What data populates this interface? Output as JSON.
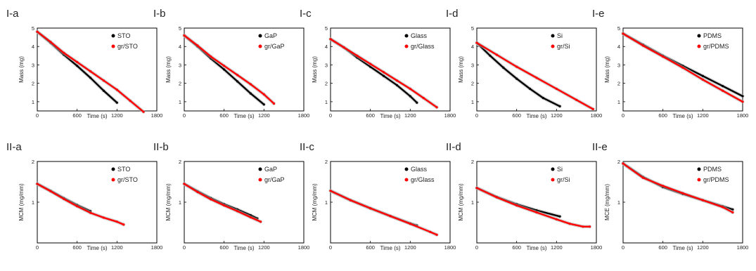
{
  "chart_data": [
    {
      "panel": "I-a",
      "type": "line",
      "xlabel": "Time (s)",
      "ylabel": "Mass (mg)",
      "xlim": [
        0,
        1800
      ],
      "ylim": [
        0.5,
        5
      ],
      "xticks": [
        0,
        600,
        1200,
        1800
      ],
      "yticks": [
        1,
        2,
        3,
        4,
        5
      ],
      "legend_position": "top-right",
      "series": [
        {
          "name": "STO",
          "color": "#000000",
          "x": [
            0,
            200,
            400,
            600,
            800,
            1000,
            1200
          ],
          "y": [
            4.8,
            4.2,
            3.55,
            2.95,
            2.3,
            1.6,
            0.95
          ]
        },
        {
          "name": "gr/STO",
          "color": "#ff0000",
          "x": [
            0,
            200,
            400,
            600,
            800,
            1000,
            1200,
            1400,
            1600
          ],
          "y": [
            4.8,
            4.25,
            3.65,
            3.15,
            2.65,
            2.15,
            1.65,
            1.05,
            0.45
          ]
        }
      ]
    },
    {
      "panel": "I-b",
      "type": "line",
      "xlabel": "Time (s)",
      "ylabel": "Mass (mg)",
      "xlim": [
        0,
        1800
      ],
      "ylim": [
        0.5,
        5
      ],
      "xticks": [
        0,
        600,
        1200,
        1800
      ],
      "yticks": [
        1,
        2,
        3,
        4,
        5
      ],
      "legend_position": "top-right",
      "series": [
        {
          "name": "GaP",
          "color": "#000000",
          "x": [
            0,
            200,
            400,
            600,
            800,
            1000,
            1200
          ],
          "y": [
            4.6,
            4.0,
            3.35,
            2.75,
            2.1,
            1.45,
            0.85
          ]
        },
        {
          "name": "gr/GaP",
          "color": "#ff0000",
          "x": [
            0,
            200,
            400,
            600,
            800,
            1000,
            1200,
            1350
          ],
          "y": [
            4.6,
            4.05,
            3.45,
            2.95,
            2.45,
            1.95,
            1.4,
            0.9
          ]
        }
      ]
    },
    {
      "panel": "I-c",
      "type": "line",
      "xlabel": "Time (s)",
      "ylabel": "Mass (mg)",
      "xlim": [
        0,
        1800
      ],
      "ylim": [
        0.5,
        5
      ],
      "xticks": [
        0,
        600,
        1200,
        1800
      ],
      "yticks": [
        1,
        2,
        3,
        4,
        5
      ],
      "legend_position": "top-right",
      "series": [
        {
          "name": "Glass",
          "color": "#000000",
          "x": [
            0,
            200,
            400,
            600,
            800,
            1000,
            1200,
            1300
          ],
          "y": [
            4.4,
            3.95,
            3.4,
            2.9,
            2.4,
            1.9,
            1.3,
            0.95
          ]
        },
        {
          "name": "gr/Glass",
          "color": "#ff0000",
          "x": [
            0,
            200,
            400,
            600,
            800,
            1000,
            1200,
            1400,
            1600
          ],
          "y": [
            4.4,
            3.95,
            3.5,
            3.05,
            2.6,
            2.15,
            1.7,
            1.2,
            0.7
          ]
        }
      ]
    },
    {
      "panel": "I-d",
      "type": "line",
      "xlabel": "Time (s)",
      "ylabel": "Mass (mg)",
      "xlim": [
        0,
        1800
      ],
      "ylim": [
        0.5,
        5
      ],
      "xticks": [
        0,
        600,
        1200,
        1800
      ],
      "yticks": [
        1,
        2,
        3,
        4,
        5
      ],
      "legend_position": "top-right",
      "series": [
        {
          "name": "Si",
          "color": "#000000",
          "x": [
            0,
            200,
            400,
            600,
            800,
            1000,
            1250
          ],
          "y": [
            4.2,
            3.5,
            2.85,
            2.25,
            1.7,
            1.2,
            0.75
          ]
        },
        {
          "name": "gr/Si",
          "color": "#ff0000",
          "x": [
            0,
            300,
            600,
            900,
            1200,
            1500,
            1750
          ],
          "y": [
            4.2,
            3.55,
            2.9,
            2.3,
            1.7,
            1.1,
            0.6
          ]
        }
      ]
    },
    {
      "panel": "I-e",
      "type": "line",
      "xlabel": "Time (s)",
      "ylabel": "Mass (mg)",
      "xlim": [
        0,
        1800
      ],
      "ylim": [
        0.5,
        5
      ],
      "xticks": [
        0,
        600,
        1200,
        1800
      ],
      "yticks": [
        1,
        2,
        3,
        4,
        5
      ],
      "legend_position": "top-right",
      "series": [
        {
          "name": "PDMS",
          "color": "#000000",
          "x": [
            0,
            300,
            600,
            900,
            1200,
            1500,
            1800
          ],
          "y": [
            4.7,
            4.1,
            3.5,
            2.95,
            2.4,
            1.85,
            1.3
          ]
        },
        {
          "name": "gr/PDMS",
          "color": "#ff0000",
          "x": [
            0,
            300,
            600,
            900,
            1200,
            1500,
            1800
          ],
          "y": [
            4.7,
            4.05,
            3.45,
            2.85,
            2.2,
            1.6,
            1.0
          ]
        }
      ]
    },
    {
      "panel": "II-a",
      "type": "line",
      "xlabel": "Time (s)",
      "ylabel": "MCM (mg/mm)",
      "xlim": [
        0,
        1800
      ],
      "ylim": [
        0,
        2
      ],
      "xticks": [
        0,
        600,
        1200,
        1800
      ],
      "yticks": [
        1,
        2
      ],
      "legend_position": "top-right",
      "series": [
        {
          "name": "STO",
          "color": "#000000",
          "x": [
            0,
            200,
            400,
            600,
            800
          ],
          "y": [
            1.45,
            1.28,
            1.1,
            0.93,
            0.78
          ]
        },
        {
          "name": "gr/STO",
          "color": "#ff0000",
          "x": [
            0,
            200,
            400,
            600,
            800,
            1000,
            1200,
            1300
          ],
          "y": [
            1.45,
            1.27,
            1.08,
            0.9,
            0.74,
            0.62,
            0.52,
            0.45
          ]
        }
      ]
    },
    {
      "panel": "II-b",
      "type": "line",
      "xlabel": "Time (s)",
      "ylabel": "MCM (mg/mm)",
      "xlim": [
        0,
        1800
      ],
      "ylim": [
        0,
        2
      ],
      "xticks": [
        0,
        600,
        1200,
        1800
      ],
      "yticks": [
        1,
        2
      ],
      "legend_position": "top-right",
      "series": [
        {
          "name": "GaP",
          "color": "#000000",
          "x": [
            0,
            200,
            400,
            600,
            800,
            1000,
            1100
          ],
          "y": [
            1.45,
            1.27,
            1.1,
            0.95,
            0.82,
            0.68,
            0.6
          ]
        },
        {
          "name": "gr/GaP",
          "color": "#ff0000",
          "x": [
            0,
            200,
            400,
            600,
            800,
            1000,
            1150
          ],
          "y": [
            1.45,
            1.25,
            1.07,
            0.92,
            0.78,
            0.63,
            0.52
          ]
        }
      ]
    },
    {
      "panel": "II-c",
      "type": "line",
      "xlabel": "Time (s)",
      "ylabel": "MCM (mg/mm)",
      "xlim": [
        0,
        1800
      ],
      "ylim": [
        0,
        2
      ],
      "xticks": [
        0,
        600,
        1200,
        1800
      ],
      "yticks": [
        1,
        2
      ],
      "legend_position": "top-right",
      "series": [
        {
          "name": "Glass",
          "color": "#000000",
          "x": [
            0,
            300,
            600,
            900,
            1200,
            1300
          ],
          "y": [
            1.28,
            1.05,
            0.85,
            0.66,
            0.48,
            0.43
          ]
        },
        {
          "name": "gr/Glass",
          "color": "#ff0000",
          "x": [
            0,
            300,
            600,
            900,
            1200,
            1500,
            1600
          ],
          "y": [
            1.28,
            1.05,
            0.85,
            0.66,
            0.47,
            0.27,
            0.2
          ]
        }
      ]
    },
    {
      "panel": "II-d",
      "type": "line",
      "xlabel": "Time (s)",
      "ylabel": "MCM (mg/mm)",
      "xlim": [
        0,
        1800
      ],
      "ylim": [
        0,
        2
      ],
      "xticks": [
        0,
        600,
        1200,
        1800
      ],
      "yticks": [
        1,
        2
      ],
      "legend_position": "top-right",
      "series": [
        {
          "name": "Si",
          "color": "#000000",
          "x": [
            0,
            300,
            600,
            900,
            1250
          ],
          "y": [
            1.35,
            1.13,
            0.95,
            0.8,
            0.65
          ]
        },
        {
          "name": "gr/Si",
          "color": "#ff0000",
          "x": [
            0,
            300,
            600,
            900,
            1200,
            1400,
            1600,
            1700
          ],
          "y": [
            1.35,
            1.12,
            0.92,
            0.75,
            0.58,
            0.47,
            0.4,
            0.4
          ]
        }
      ]
    },
    {
      "panel": "II-e",
      "type": "line",
      "xlabel": "Time (s)",
      "ylabel": "MCE (mg/mm)",
      "xlim": [
        0,
        1800
      ],
      "ylim": [
        0,
        2
      ],
      "xticks": [
        0,
        600,
        1200,
        1800
      ],
      "yticks": [
        1,
        2
      ],
      "legend_position": "top-right",
      "series": [
        {
          "name": "PDMS",
          "color": "#000000",
          "x": [
            0,
            300,
            600,
            900,
            1200,
            1500,
            1650
          ],
          "y": [
            1.95,
            1.62,
            1.37,
            1.2,
            1.05,
            0.9,
            0.82
          ]
        },
        {
          "name": "gr/PDMS",
          "color": "#ff0000",
          "x": [
            0,
            300,
            600,
            900,
            1200,
            1500,
            1650
          ],
          "y": [
            1.95,
            1.6,
            1.4,
            1.22,
            1.05,
            0.88,
            0.75
          ]
        }
      ]
    }
  ]
}
